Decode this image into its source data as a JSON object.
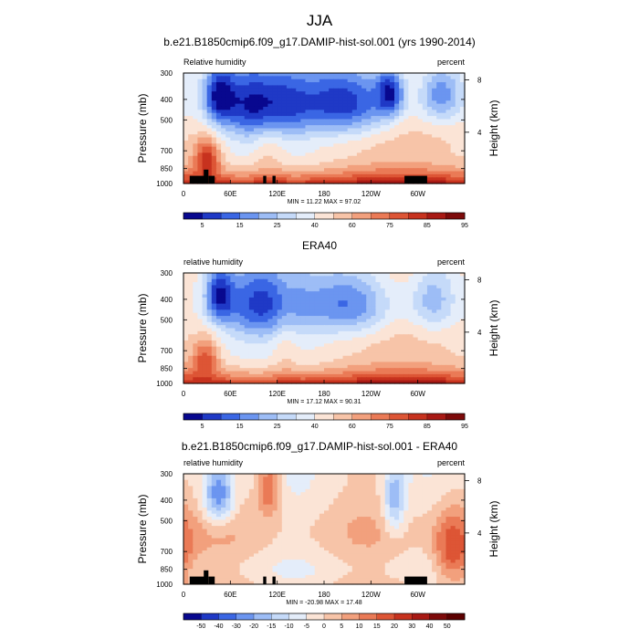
{
  "chart_data": {
    "type": "heatmap",
    "figure_title": "JJA",
    "panels": [
      {
        "title": "b.e21.B1850cmip6.f09_g17.DAMIP-hist-sol.001 (yrs 1990-2014)",
        "left_label": "Relative humidity",
        "right_label": "percent",
        "ylabel": "Pressure (mb)",
        "ylabel_right": "Height (km)",
        "y_ticks": [
          "300",
          "400",
          "500",
          "700",
          "850",
          "1000"
        ],
        "y_tick_values": [
          300,
          400,
          500,
          700,
          850,
          1000
        ],
        "right_ticks": [
          "8",
          "4"
        ],
        "right_tick_values": [
          8,
          4
        ],
        "x_ticks": [
          "0",
          "60E",
          "120E",
          "180",
          "120W",
          "60W"
        ],
        "x_tick_values": [
          0,
          60,
          120,
          180,
          240,
          300
        ],
        "xlim": [
          0,
          360
        ],
        "ylim": [
          1000,
          300
        ],
        "stats": "MIN = 11.22  MAX = 97.02",
        "min": 11.22,
        "max": 97.02,
        "levels": [
          "5",
          "15",
          "25",
          "40",
          "60",
          "75",
          "85",
          "95"
        ],
        "colorbar_colors": [
          "#08088f",
          "#1f39c6",
          "#3a66e4",
          "#6b95f0",
          "#9dbdf6",
          "#c5daf9",
          "#e4edfa",
          "#fbe4d6",
          "#f7c4a8",
          "#f2a07d",
          "#ea7a56",
          "#dd5535",
          "#c7321e",
          "#a81914",
          "#7d0a0a"
        ],
        "has_topography": true,
        "features": [
          {
            "lon": 100,
            "p": 420,
            "value": 8,
            "lon_sigma": 38,
            "p_sigma": 120
          },
          {
            "lon": 210,
            "p": 410,
            "value": 10,
            "lon_sigma": 45,
            "p_sigma": 115
          },
          {
            "lon": 45,
            "p": 380,
            "value": 18,
            "lon_sigma": 14,
            "p_sigma": 85
          },
          {
            "lon": 330,
            "p": 380,
            "value": 22,
            "lon_sigma": 20,
            "p_sigma": 90
          },
          {
            "lon": 265,
            "p": 370,
            "value": 18,
            "lon_sigma": 12,
            "p_sigma": 70
          },
          {
            "lon": 110,
            "p": 600,
            "value": 62,
            "lon_sigma": 15,
            "p_sigma": 300
          },
          {
            "lon": 30,
            "p": 760,
            "value": 85,
            "lon_sigma": 12,
            "p_sigma": 110
          }
        ]
      },
      {
        "title": "ERA40",
        "left_label": "relative humidity",
        "right_label": "percent",
        "ylabel": "Pressure (mb)",
        "ylabel_right": "Height (km)",
        "y_ticks": [
          "300",
          "400",
          "500",
          "700",
          "850",
          "1000"
        ],
        "y_tick_values": [
          300,
          400,
          500,
          700,
          850,
          1000
        ],
        "right_ticks": [
          "8",
          "4"
        ],
        "right_tick_values": [
          8,
          4
        ],
        "x_ticks": [
          "0",
          "60E",
          "120E",
          "180",
          "120W",
          "60W"
        ],
        "x_tick_values": [
          0,
          60,
          120,
          180,
          240,
          300
        ],
        "xlim": [
          0,
          360
        ],
        "ylim": [
          1000,
          300
        ],
        "stats": "MIN = 17.12  MAX = 90.31",
        "min": 17.12,
        "max": 90.31,
        "levels": [
          "5",
          "15",
          "25",
          "40",
          "60",
          "75",
          "85",
          "95"
        ],
        "colorbar_colors": [
          "#08088f",
          "#1f39c6",
          "#3a66e4",
          "#6b95f0",
          "#9dbdf6",
          "#c5daf9",
          "#e4edfa",
          "#fbe4d6",
          "#f7c4a8",
          "#f2a07d",
          "#ea7a56",
          "#dd5535",
          "#c7321e",
          "#a81914",
          "#7d0a0a"
        ],
        "has_topography": false,
        "features": [
          {
            "lon": 100,
            "p": 420,
            "value": 18,
            "lon_sigma": 40,
            "p_sigma": 120
          },
          {
            "lon": 215,
            "p": 420,
            "value": 20,
            "lon_sigma": 40,
            "p_sigma": 110
          },
          {
            "lon": 45,
            "p": 380,
            "value": 20,
            "lon_sigma": 12,
            "p_sigma": 80
          },
          {
            "lon": 320,
            "p": 400,
            "value": 28,
            "lon_sigma": 22,
            "p_sigma": 110
          },
          {
            "lon": 130,
            "p": 600,
            "value": 60,
            "lon_sigma": 12,
            "p_sigma": 250
          },
          {
            "lon": 28,
            "p": 760,
            "value": 78,
            "lon_sigma": 12,
            "p_sigma": 110
          }
        ]
      },
      {
        "title": "b.e21.B1850cmip6.f09_g17.DAMIP-hist-sol.001 - ERA40",
        "left_label": "relative humidity",
        "right_label": "percent",
        "ylabel": "Pressure (mb)",
        "ylabel_right": "Height (km)",
        "y_ticks": [
          "300",
          "400",
          "500",
          "700",
          "850",
          "1000"
        ],
        "y_tick_values": [
          300,
          400,
          500,
          700,
          850,
          1000
        ],
        "right_ticks": [
          "8",
          "4"
        ],
        "right_tick_values": [
          8,
          4
        ],
        "x_ticks": [
          "0",
          "60E",
          "120E",
          "180",
          "120W",
          "60W"
        ],
        "x_tick_values": [
          0,
          60,
          120,
          180,
          240,
          300
        ],
        "xlim": [
          0,
          360
        ],
        "ylim": [
          1000,
          300
        ],
        "stats": "MIN = -20.98  MAX = 17.48",
        "min": -20.98,
        "max": 17.48,
        "levels": [
          "-50",
          "-40",
          "-30",
          "-20",
          "-15",
          "-10",
          "-5",
          "0",
          "5",
          "10",
          "15",
          "20",
          "30",
          "40",
          "50"
        ],
        "colorbar_colors": [
          "#08088f",
          "#1f39c6",
          "#3a66e4",
          "#6b95f0",
          "#9dbdf6",
          "#c5daf9",
          "#e4edfa",
          "#fbe4d6",
          "#f7c4a8",
          "#f2a07d",
          "#ea7a56",
          "#dd5535",
          "#c7321e",
          "#a81914",
          "#7d0a0a",
          "#5c0000"
        ],
        "has_topography": true,
        "features": [
          {
            "lon": 45,
            "p": 380,
            "value": -14,
            "lon_sigma": 14,
            "p_sigma": 90
          },
          {
            "lon": 270,
            "p": 400,
            "value": -10,
            "lon_sigma": 10,
            "p_sigma": 120
          },
          {
            "lon": 345,
            "p": 700,
            "value": 12,
            "lon_sigma": 18,
            "p_sigma": 200
          },
          {
            "lon": 110,
            "p": 350,
            "value": 10,
            "lon_sigma": 10,
            "p_sigma": 80
          }
        ]
      }
    ]
  }
}
